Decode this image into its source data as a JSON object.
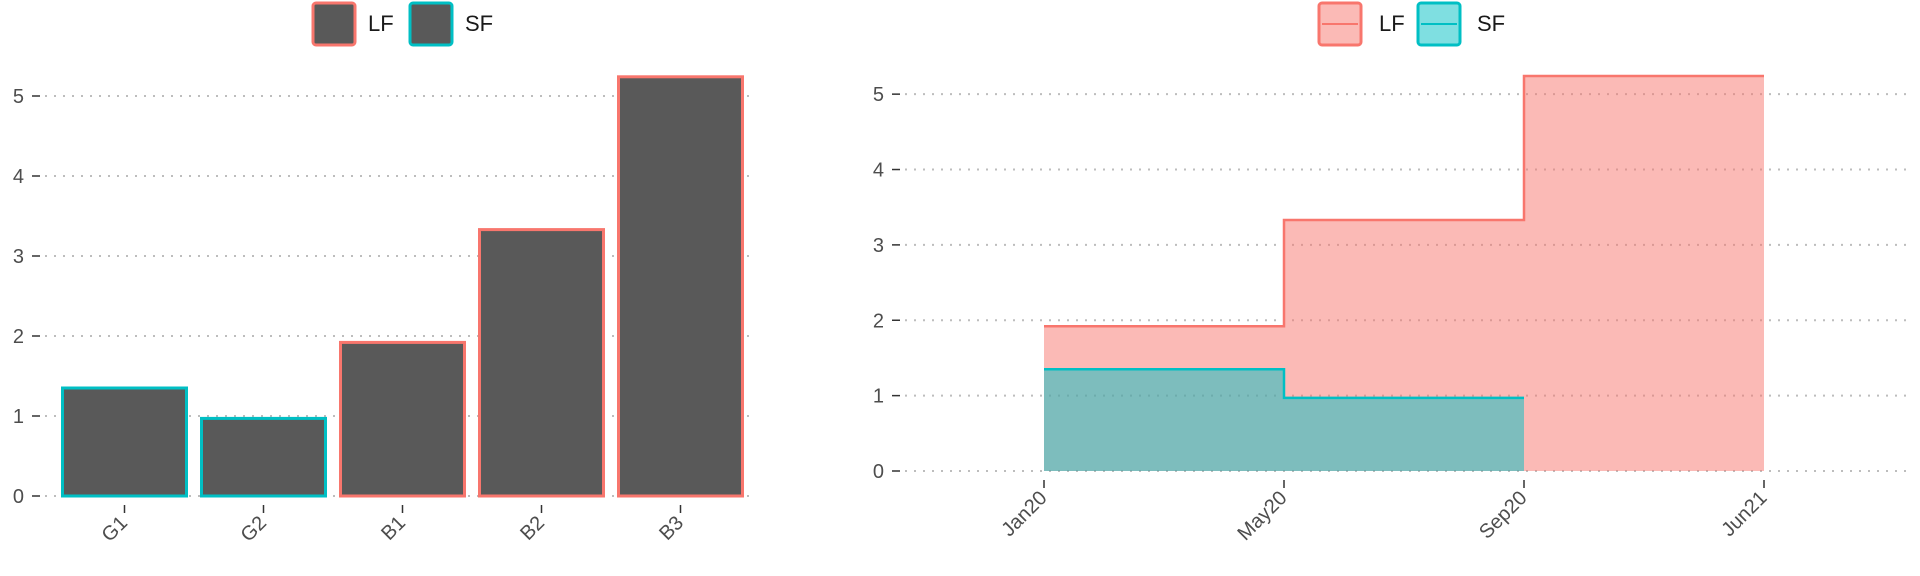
{
  "colors": {
    "LF": "#F8766D",
    "SF": "#00BFC4",
    "bar_fill": "#595959",
    "grid": "#bdbdbd",
    "axis_text": "#4d4d4d"
  },
  "chart_data": [
    {
      "type": "bar",
      "legend": {
        "position": "top",
        "entries": [
          "LF",
          "SF"
        ]
      },
      "categories": [
        "G1",
        "G2",
        "B1",
        "B2",
        "B3"
      ],
      "values": [
        1.35,
        0.97,
        1.92,
        3.33,
        5.24
      ],
      "group": [
        "SF",
        "SF",
        "LF",
        "LF",
        "LF"
      ],
      "ylim": [
        0,
        5.4
      ],
      "yticks": [
        0,
        1,
        2,
        3,
        4,
        5
      ],
      "grid": "horizontal-dotted"
    },
    {
      "type": "area",
      "legend": {
        "position": "top",
        "entries": [
          "LF",
          "SF"
        ]
      },
      "xticks": [
        "Jan20",
        "May20",
        "Sep20",
        "Jun21"
      ],
      "yticks": [
        0,
        1,
        2,
        3,
        4,
        5
      ],
      "ylim": [
        0,
        5.4
      ],
      "grid": "horizontal-dotted",
      "series": [
        {
          "name": "LF",
          "steps": [
            {
              "from": "Jan20",
              "to": "May20",
              "value": 1.92
            },
            {
              "from": "May20",
              "to": "Sep20",
              "value": 3.33
            },
            {
              "from": "Sep20",
              "to": "Jun21",
              "value": 5.24
            }
          ]
        },
        {
          "name": "SF",
          "steps": [
            {
              "from": "Jan20",
              "to": "May20",
              "value": 1.35
            },
            {
              "from": "May20",
              "to": "Sep20",
              "value": 0.97
            }
          ]
        }
      ]
    }
  ]
}
